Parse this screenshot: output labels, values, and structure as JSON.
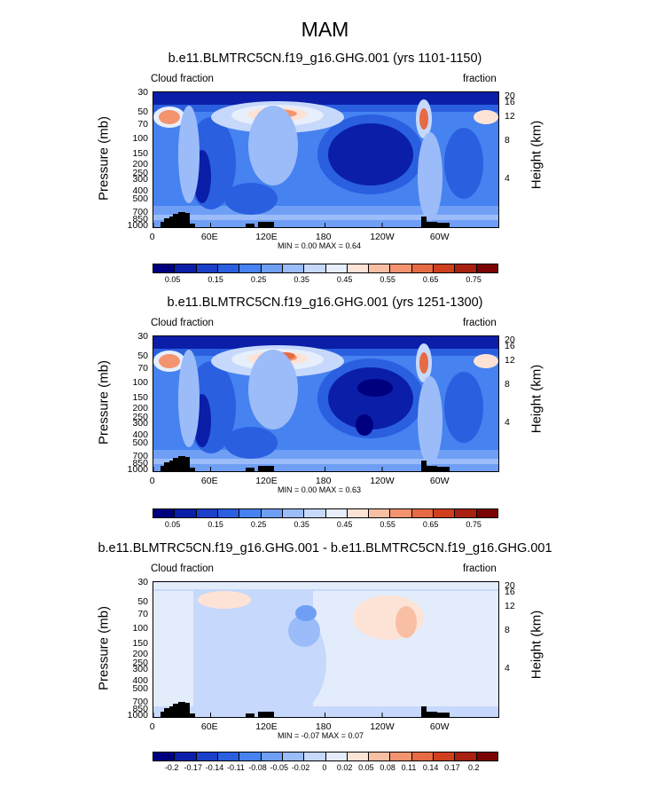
{
  "figure": {
    "title": "MAM"
  },
  "chart_data": [
    {
      "type": "heatmap",
      "title": "b.e11.BLMTRC5CN.f19_g16.GHG.001 (yrs 1101-1150)",
      "left_string": "Cloud fraction",
      "right_string": "fraction",
      "ylabel": "Pressure (mb)",
      "ylabel_right": "Height (km)",
      "yticks": [
        "30",
        "50",
        "70",
        "100",
        "150",
        "200",
        "250",
        "300",
        "400",
        "500",
        "700",
        "850",
        "1000"
      ],
      "yticks_right": [
        "20",
        "16",
        "12",
        "8",
        "4"
      ],
      "xticks": [
        "0",
        "60E",
        "120E",
        "180",
        "120W",
        "60W"
      ],
      "min_max": "MIN =  0.00  MAX =  0.64",
      "colorbar_labels": [
        "0.05",
        "0.15",
        "0.25",
        "0.35",
        "0.45",
        "0.55",
        "0.65",
        "0.75"
      ],
      "colorbar_colors": [
        "#00007f",
        "#0a1ea8",
        "#1a3fc9",
        "#2a5fe0",
        "#4682f0",
        "#6f9ff5",
        "#9bbcf8",
        "#c6d8fb",
        "#e7eefc",
        "#fde3d6",
        "#f9bfa5",
        "#f3946f",
        "#e66a44",
        "#cf3f1d",
        "#a82010",
        "#7a0403"
      ],
      "colorbar_range": [
        0,
        0.8
      ]
    },
    {
      "type": "heatmap",
      "title": "b.e11.BLMTRC5CN.f19_g16.GHG.001 (yrs 1251-1300)",
      "left_string": "Cloud fraction",
      "right_string": "fraction",
      "ylabel": "Pressure (mb)",
      "ylabel_right": "Height (km)",
      "yticks": [
        "30",
        "50",
        "70",
        "100",
        "150",
        "200",
        "250",
        "300",
        "400",
        "500",
        "700",
        "850",
        "1000"
      ],
      "yticks_right": [
        "20",
        "16",
        "12",
        "8",
        "4"
      ],
      "xticks": [
        "0",
        "60E",
        "120E",
        "180",
        "120W",
        "60W"
      ],
      "min_max": "MIN =  0.00  MAX =  0.63",
      "colorbar_labels": [
        "0.05",
        "0.15",
        "0.25",
        "0.35",
        "0.45",
        "0.55",
        "0.65",
        "0.75"
      ],
      "colorbar_colors": [
        "#00007f",
        "#0a1ea8",
        "#1a3fc9",
        "#2a5fe0",
        "#4682f0",
        "#6f9ff5",
        "#9bbcf8",
        "#c6d8fb",
        "#e7eefc",
        "#fde3d6",
        "#f9bfa5",
        "#f3946f",
        "#e66a44",
        "#cf3f1d",
        "#a82010",
        "#7a0403"
      ],
      "colorbar_range": [
        0,
        0.8
      ]
    },
    {
      "type": "heatmap",
      "title": "b.e11.BLMTRC5CN.f19_g16.GHG.001 - b.e11.BLMTRC5CN.f19_g16.GHG.001",
      "left_string": "Cloud fraction",
      "right_string": "fraction",
      "ylabel": "Pressure (mb)",
      "ylabel_right": "Height (km)",
      "yticks": [
        "30",
        "50",
        "70",
        "100",
        "150",
        "200",
        "250",
        "300",
        "400",
        "500",
        "700",
        "850",
        "1000"
      ],
      "yticks_right": [
        "20",
        "16",
        "12",
        "8",
        "4"
      ],
      "xticks": [
        "0",
        "60E",
        "120E",
        "180",
        "120W",
        "60W"
      ],
      "min_max": "MIN = -0.07  MAX =  0.07",
      "colorbar_labels": [
        "-0.2",
        "-0.17",
        "-0.14",
        "-0.11",
        "-0.08",
        "-0.05",
        "-0.02",
        "0",
        "0.02",
        "0.05",
        "0.08",
        "0.11",
        "0.14",
        "0.17",
        "0.2"
      ],
      "colorbar_colors": [
        "#00007f",
        "#0a1ea8",
        "#1a3fc9",
        "#2a5fe0",
        "#4682f0",
        "#6f9ff5",
        "#9bbcf8",
        "#c6d8fb",
        "#e3ecfa",
        "#fde3d6",
        "#f9bfa5",
        "#f3946f",
        "#e66a44",
        "#cf3f1d",
        "#a82010",
        "#7a0403"
      ],
      "colorbar_range": [
        -0.2,
        0.2
      ]
    }
  ]
}
